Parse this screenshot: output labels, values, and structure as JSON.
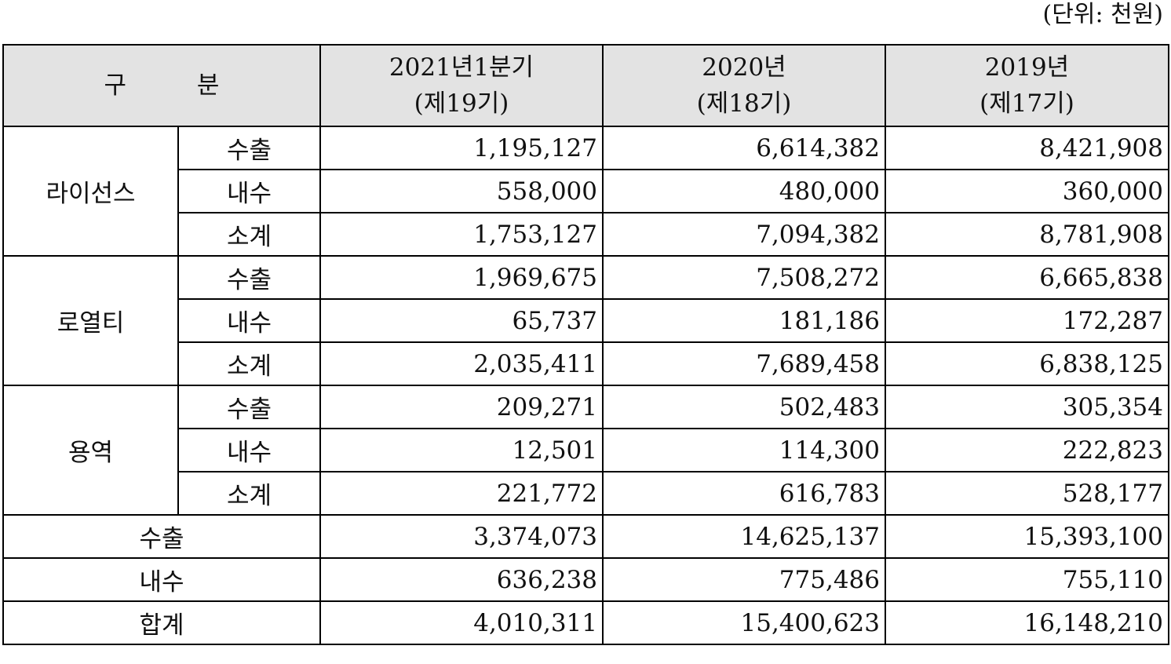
{
  "unit_label": "(단위: 천원)",
  "header": {
    "category": "구 분",
    "columns": [
      {
        "year": "2021년1분기",
        "period": "(제19기)"
      },
      {
        "year": "2020년",
        "period": "(제18기)"
      },
      {
        "year": "2019년",
        "period": "(제17기)"
      }
    ]
  },
  "groups": [
    {
      "name": "라이선스",
      "rows": [
        {
          "label": "수출",
          "values": [
            "1,195,127",
            "6,614,382",
            "8,421,908"
          ]
        },
        {
          "label": "내수",
          "values": [
            "558,000",
            "480,000",
            "360,000"
          ]
        },
        {
          "label": "소계",
          "values": [
            "1,753,127",
            "7,094,382",
            "8,781,908"
          ]
        }
      ]
    },
    {
      "name": "로열티",
      "rows": [
        {
          "label": "수출",
          "values": [
            "1,969,675",
            "7,508,272",
            "6,665,838"
          ]
        },
        {
          "label": "내수",
          "values": [
            "65,737",
            "181,186",
            "172,287"
          ]
        },
        {
          "label": "소계",
          "values": [
            "2,035,411",
            "7,689,458",
            "6,838,125"
          ]
        }
      ]
    },
    {
      "name": "용역",
      "rows": [
        {
          "label": "수출",
          "values": [
            "209,271",
            "502,483",
            "305,354"
          ]
        },
        {
          "label": "내수",
          "values": [
            "12,501",
            "114,300",
            "222,823"
          ]
        },
        {
          "label": "소계",
          "values": [
            "221,772",
            "616,783",
            "528,177"
          ]
        }
      ]
    }
  ],
  "totals": [
    {
      "label": "수출",
      "values": [
        "3,374,073",
        "14,625,137",
        "15,393,100"
      ]
    },
    {
      "label": "내수",
      "values": [
        "636,238",
        "775,486",
        "755,110"
      ]
    },
    {
      "label": "합계",
      "values": [
        "4,010,311",
        "15,400,623",
        "16,148,210"
      ]
    }
  ]
}
